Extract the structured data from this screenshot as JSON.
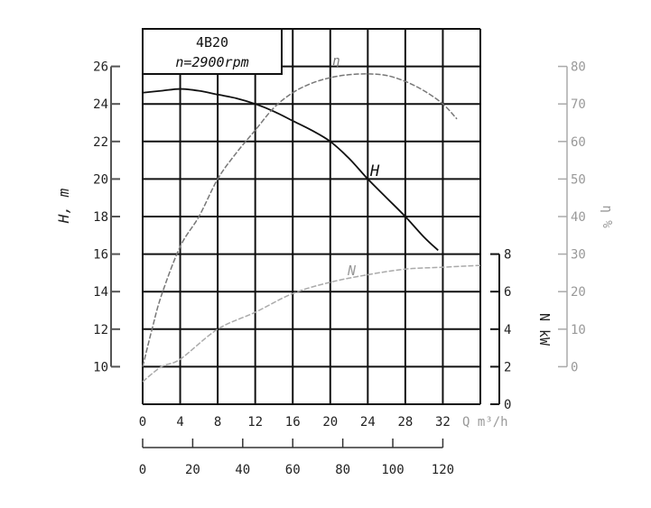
{
  "chart_data": {
    "type": "line",
    "title": "4B20",
    "subtitle": "n=2900rpm",
    "xlabel": "Q m³/h",
    "xlim": [
      0,
      36
    ],
    "x_ticks": [
      0,
      4,
      8,
      12,
      16,
      20,
      24,
      28,
      32
    ],
    "secondary_x_ticks": [
      0,
      20,
      40,
      60,
      80,
      100,
      120
    ],
    "grid": true,
    "axes": {
      "head": {
        "label": "H, m",
        "side": "left",
        "range": [
          8,
          28
        ],
        "ticks": [
          10,
          12,
          14,
          16,
          18,
          20,
          22,
          24,
          26
        ]
      },
      "power": {
        "label": "N kW",
        "side": "right-inner",
        "range": [
          0,
          8
        ],
        "ticks": [
          0,
          2,
          4,
          6,
          8
        ]
      },
      "efficiency": {
        "label": "η %",
        "side": "right-outer",
        "range": [
          0,
          80
        ],
        "ticks": [
          0,
          10,
          20,
          30,
          40,
          50,
          60,
          70,
          80
        ]
      }
    },
    "series": [
      {
        "name": "H",
        "axis": "head",
        "color": "#111111",
        "x": [
          0,
          2,
          4,
          6,
          8,
          10,
          12,
          14,
          16,
          18,
          20,
          22,
          24,
          26,
          28,
          30,
          31.5
        ],
        "y": [
          24.6,
          24.7,
          24.8,
          24.7,
          24.5,
          24.3,
          24.0,
          23.6,
          23.1,
          22.6,
          22.0,
          21.1,
          20.0,
          19.0,
          18.0,
          16.9,
          16.2
        ]
      },
      {
        "name": "η",
        "axis": "efficiency",
        "color": "#777777",
        "x": [
          0,
          1,
          2,
          4,
          6,
          8,
          10,
          12,
          14,
          16,
          18,
          20,
          22,
          24,
          26,
          28,
          30,
          32,
          33.5
        ],
        "y": [
          0,
          10,
          19,
          32,
          40,
          50,
          57,
          63,
          69,
          73,
          75.5,
          77,
          77.8,
          78,
          77.6,
          76,
          73.5,
          70,
          66
        ]
      },
      {
        "name": "N",
        "axis": "power",
        "color": "#aaaaaa",
        "x": [
          0,
          2,
          4,
          8,
          12,
          16,
          20,
          24,
          28,
          32,
          36
        ],
        "y": [
          1.2,
          2.0,
          2.4,
          4.0,
          4.9,
          5.9,
          6.5,
          6.9,
          7.2,
          7.3,
          7.4
        ]
      }
    ]
  }
}
